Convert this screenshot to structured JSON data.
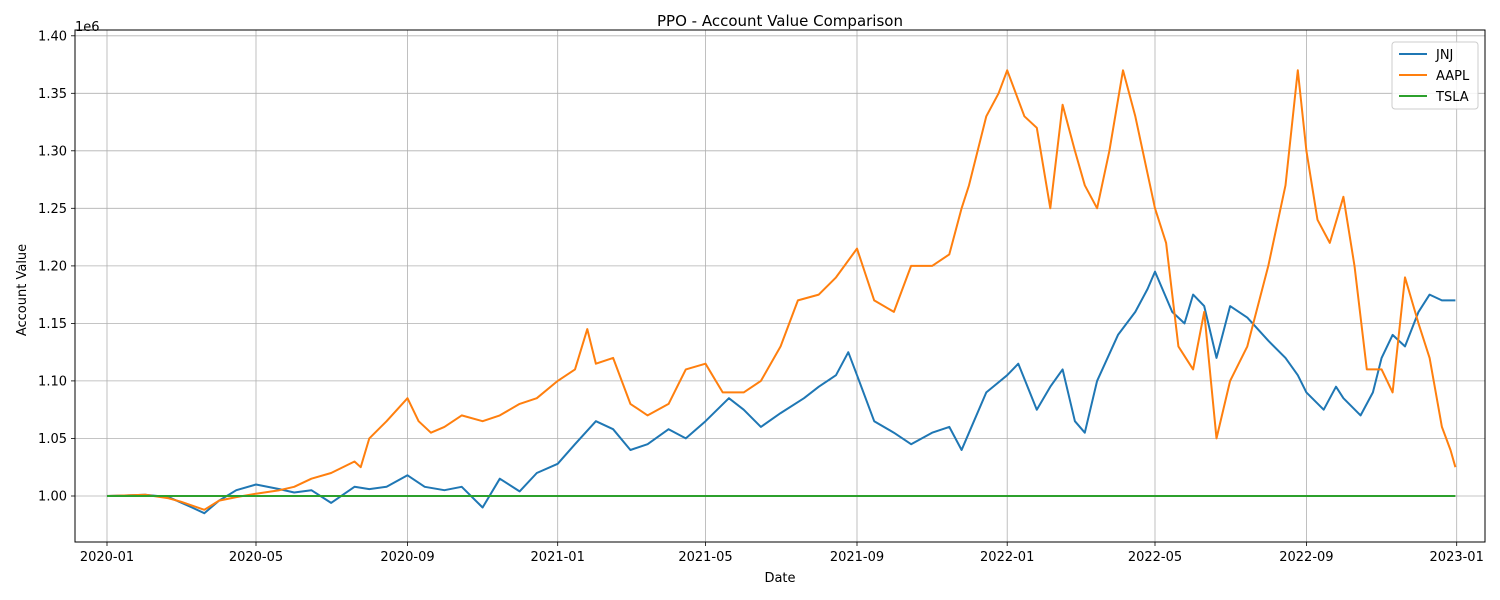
{
  "chart_data": {
    "type": "line",
    "title": "PPO - Account Value Comparison",
    "xlabel": "Date",
    "ylabel": "Account Value",
    "y_offset_text": "1e6",
    "xlim": [
      "2019-12-06",
      "2023-01-24"
    ],
    "ylim": [
      0.96,
      1.405
    ],
    "x_ticks": [
      "2020-01",
      "2020-05",
      "2020-09",
      "2021-01",
      "2021-05",
      "2021-09",
      "2022-01",
      "2022-05",
      "2022-09",
      "2023-01"
    ],
    "y_ticks": [
      1.0,
      1.05,
      1.1,
      1.15,
      1.2,
      1.25,
      1.3,
      1.35,
      1.4
    ],
    "y_tick_labels": [
      "1.00",
      "1.05",
      "1.10",
      "1.15",
      "1.20",
      "1.25",
      "1.30",
      "1.35",
      "1.40"
    ],
    "grid": true,
    "legend": "top-right",
    "series": [
      {
        "name": "JNJ",
        "color": "#1f77b4",
        "x": [
          "2020-01-01",
          "2020-02-01",
          "2020-02-20",
          "2020-03-10",
          "2020-03-20",
          "2020-04-01",
          "2020-04-15",
          "2020-05-01",
          "2020-05-20",
          "2020-06-01",
          "2020-06-15",
          "2020-07-01",
          "2020-07-20",
          "2020-08-01",
          "2020-08-15",
          "2020-09-01",
          "2020-09-15",
          "2020-10-01",
          "2020-10-15",
          "2020-11-01",
          "2020-11-15",
          "2020-12-01",
          "2020-12-15",
          "2021-01-01",
          "2021-01-15",
          "2021-02-01",
          "2021-02-15",
          "2021-03-01",
          "2021-03-15",
          "2021-04-01",
          "2021-04-15",
          "2021-05-01",
          "2021-05-20",
          "2021-06-01",
          "2021-06-15",
          "2021-07-01",
          "2021-07-20",
          "2021-08-01",
          "2021-08-15",
          "2021-08-25",
          "2021-09-01",
          "2021-09-15",
          "2021-10-01",
          "2021-10-15",
          "2021-11-01",
          "2021-11-15",
          "2021-11-25",
          "2021-12-01",
          "2021-12-15",
          "2022-01-01",
          "2022-01-10",
          "2022-01-25",
          "2022-02-05",
          "2022-02-15",
          "2022-02-25",
          "2022-03-05",
          "2022-03-15",
          "2022-04-01",
          "2022-04-15",
          "2022-04-25",
          "2022-05-01",
          "2022-05-15",
          "2022-05-25",
          "2022-06-01",
          "2022-06-10",
          "2022-06-20",
          "2022-07-01",
          "2022-07-15",
          "2022-08-01",
          "2022-08-15",
          "2022-08-25",
          "2022-09-01",
          "2022-09-15",
          "2022-09-25",
          "2022-10-01",
          "2022-10-15",
          "2022-10-25",
          "2022-11-01",
          "2022-11-10",
          "2022-11-20",
          "2022-12-01",
          "2022-12-10",
          "2022-12-20",
          "2022-12-31"
        ],
        "values": [
          1.0,
          1.001,
          0.999,
          0.99,
          0.985,
          0.996,
          1.005,
          1.01,
          1.006,
          1.003,
          1.005,
          0.994,
          1.008,
          1.006,
          1.008,
          1.018,
          1.008,
          1.005,
          1.008,
          0.99,
          1.015,
          1.004,
          1.02,
          1.028,
          1.045,
          1.065,
          1.058,
          1.04,
          1.045,
          1.058,
          1.05,
          1.065,
          1.085,
          1.075,
          1.06,
          1.072,
          1.085,
          1.095,
          1.105,
          1.125,
          1.105,
          1.065,
          1.055,
          1.045,
          1.055,
          1.06,
          1.04,
          1.055,
          1.09,
          1.105,
          1.115,
          1.075,
          1.095,
          1.11,
          1.065,
          1.055,
          1.1,
          1.14,
          1.16,
          1.18,
          1.195,
          1.16,
          1.15,
          1.175,
          1.165,
          1.12,
          1.165,
          1.155,
          1.135,
          1.12,
          1.105,
          1.09,
          1.075,
          1.095,
          1.085,
          1.07,
          1.09,
          1.12,
          1.14,
          1.13,
          1.16,
          1.175,
          1.17,
          1.17
        ]
      },
      {
        "name": "AAPL",
        "color": "#ff7f0e",
        "x": [
          "2020-01-01",
          "2020-02-01",
          "2020-02-20",
          "2020-03-01",
          "2020-03-20",
          "2020-04-01",
          "2020-04-15",
          "2020-05-01",
          "2020-05-20",
          "2020-06-01",
          "2020-06-15",
          "2020-07-01",
          "2020-07-20",
          "2020-07-25",
          "2020-08-01",
          "2020-08-15",
          "2020-09-01",
          "2020-09-10",
          "2020-09-20",
          "2020-10-01",
          "2020-10-15",
          "2020-11-01",
          "2020-11-15",
          "2020-12-01",
          "2020-12-15",
          "2021-01-01",
          "2021-01-15",
          "2021-01-25",
          "2021-02-01",
          "2021-02-15",
          "2021-03-01",
          "2021-03-15",
          "2021-04-01",
          "2021-04-15",
          "2021-05-01",
          "2021-05-15",
          "2021-06-01",
          "2021-06-15",
          "2021-07-01",
          "2021-07-15",
          "2021-08-01",
          "2021-08-15",
          "2021-09-01",
          "2021-09-15",
          "2021-10-01",
          "2021-10-15",
          "2021-11-01",
          "2021-11-15",
          "2021-11-25",
          "2021-12-01",
          "2021-12-15",
          "2021-12-25",
          "2022-01-01",
          "2022-01-15",
          "2022-01-25",
          "2022-02-05",
          "2022-02-15",
          "2022-02-25",
          "2022-03-05",
          "2022-03-15",
          "2022-03-25",
          "2022-04-05",
          "2022-04-15",
          "2022-04-25",
          "2022-05-01",
          "2022-05-10",
          "2022-05-20",
          "2022-06-01",
          "2022-06-10",
          "2022-06-20",
          "2022-07-01",
          "2022-07-15",
          "2022-08-01",
          "2022-08-15",
          "2022-08-25",
          "2022-09-01",
          "2022-09-10",
          "2022-09-20",
          "2022-10-01",
          "2022-10-10",
          "2022-10-20",
          "2022-11-01",
          "2022-11-10",
          "2022-11-20",
          "2022-12-01",
          "2022-12-10",
          "2022-12-20",
          "2022-12-27",
          "2022-12-31"
        ],
        "values": [
          1.0,
          1.001,
          0.998,
          0.995,
          0.988,
          0.996,
          0.999,
          1.002,
          1.005,
          1.008,
          1.015,
          1.02,
          1.03,
          1.025,
          1.05,
          1.065,
          1.085,
          1.065,
          1.055,
          1.06,
          1.07,
          1.065,
          1.07,
          1.08,
          1.085,
          1.1,
          1.11,
          1.145,
          1.115,
          1.12,
          1.08,
          1.07,
          1.08,
          1.11,
          1.115,
          1.09,
          1.09,
          1.1,
          1.13,
          1.17,
          1.175,
          1.19,
          1.215,
          1.17,
          1.16,
          1.2,
          1.2,
          1.21,
          1.25,
          1.27,
          1.33,
          1.35,
          1.37,
          1.33,
          1.32,
          1.25,
          1.34,
          1.3,
          1.27,
          1.25,
          1.3,
          1.37,
          1.33,
          1.28,
          1.25,
          1.22,
          1.13,
          1.11,
          1.16,
          1.05,
          1.1,
          1.13,
          1.2,
          1.27,
          1.37,
          1.3,
          1.24,
          1.22,
          1.26,
          1.2,
          1.11,
          1.11,
          1.09,
          1.19,
          1.15,
          1.12,
          1.06,
          1.04,
          1.025
        ]
      },
      {
        "name": "TSLA",
        "color": "#2ca02c",
        "x": [
          "2020-01-01",
          "2022-12-31"
        ],
        "values": [
          1.0,
          1.0
        ]
      }
    ]
  }
}
